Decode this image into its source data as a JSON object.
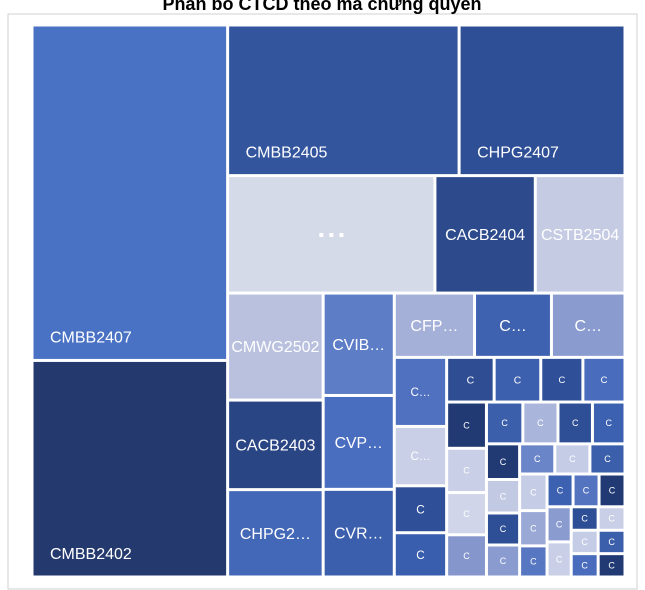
{
  "chart_data": {
    "type": "treemap",
    "title": "Phân bổ CTCD theo mã chứng quyền",
    "items": [
      {
        "name": "CMBB2407",
        "value": 62271,
        "color": "#4a72c4"
      },
      {
        "name": "CMBB2402",
        "value": 40205,
        "color": "#243a6e"
      },
      {
        "name": "CMBB2405",
        "value": 33086,
        "color": "#33559e"
      },
      {
        "name": "CHPG2407",
        "value": 23714,
        "color": "#2e4f96"
      },
      {
        "name": "▪ ▪ ▪",
        "value": 23104,
        "color": "#d5dae9"
      },
      {
        "name": "CACB2404",
        "value": 11187,
        "color": "#2c4a8c"
      },
      {
        "name": "CSTB2504",
        "value": 9999,
        "color": "#c5cbe3"
      },
      {
        "name": "CMWG2502",
        "value": 9702,
        "color": "#b9c1df"
      },
      {
        "name": "CACB2403",
        "value": 8118,
        "color": "#2a4584"
      },
      {
        "name": "CHPG2…",
        "value": 7920,
        "color": "#4468b8"
      },
      {
        "name": "CVIB…",
        "value": 6912,
        "color": "#5d7dc7"
      },
      {
        "name": "CVP…",
        "value": 6336,
        "color": "#4a6ebf"
      },
      {
        "name": "CVR…",
        "value": 5916,
        "color": "#3b5fad"
      },
      {
        "name": "CFP…",
        "value": 4896,
        "color": "#a4b0d8"
      },
      {
        "name": "C…",
        "value": 4692,
        "color": "#3f62b0"
      },
      {
        "name": "C…",
        "value": 4488,
        "color": "#8a9ccf"
      },
      {
        "name": "C…",
        "value": 3432,
        "color": "#5070c0"
      },
      {
        "name": "C…",
        "value": 2948,
        "color": "#c9cfe6"
      },
      {
        "name": "C",
        "value": 2332,
        "color": "#2f4f98"
      },
      {
        "name": "C",
        "value": 2200,
        "color": "#3a5eae"
      },
      {
        "name": "C",
        "value": 2014,
        "color": "#2e4d92"
      },
      {
        "name": "C",
        "value": 1976,
        "color": "#3c60ae"
      },
      {
        "name": "C",
        "value": 1786,
        "color": "#2f5099"
      },
      {
        "name": "C",
        "value": 1785,
        "color": "#4a6cbc"
      },
      {
        "name": "C",
        "value": 1748,
        "color": "#213a74"
      },
      {
        "name": "C",
        "value": 1672,
        "color": "#c9cfe6"
      },
      {
        "name": "C",
        "value": 1596,
        "color": "#d0d5ea"
      },
      {
        "name": "C",
        "value": 1595,
        "color": "#8596cc"
      },
      {
        "name": "C",
        "value": 1444,
        "color": "#3c5fac"
      },
      {
        "name": "C",
        "value": 1394,
        "color": "#a9b5db"
      },
      {
        "name": "C",
        "value": 1368,
        "color": "#2e4f96"
      },
      {
        "name": "C",
        "value": 1292,
        "color": "#3d61b1"
      },
      {
        "name": "C",
        "value": 1122,
        "color": "#213a74"
      },
      {
        "name": "C",
        "value": 1054,
        "color": "#c2c9e3"
      },
      {
        "name": "C",
        "value": 1008,
        "color": "#2e4f96"
      },
      {
        "name": "C",
        "value": 1007,
        "color": "#8a9bcf"
      },
      {
        "name": "C",
        "value": 1006,
        "color": "#6b86c8"
      },
      {
        "name": "C",
        "value": 1005,
        "color": "#c5cce6"
      },
      {
        "name": "C",
        "value": 1004,
        "color": "#3c5fac"
      },
      {
        "name": "C",
        "value": 952,
        "color": "#c5cce6"
      },
      {
        "name": "C",
        "value": 918,
        "color": "#9aa8d6"
      },
      {
        "name": "C",
        "value": 810,
        "color": "#5877c2"
      },
      {
        "name": "C",
        "value": 809,
        "color": "#3d61b1"
      },
      {
        "name": "C",
        "value": 808,
        "color": "#5574c0"
      },
      {
        "name": "C",
        "value": 807,
        "color": "#213a74"
      },
      {
        "name": "C",
        "value": 806,
        "color": "#8a9bcf"
      },
      {
        "name": "C",
        "value": 805,
        "color": "#c9cfe6"
      },
      {
        "name": "C",
        "value": 600,
        "color": "#2e4f96"
      },
      {
        "name": "C",
        "value": 599,
        "color": "#c9cfe6"
      },
      {
        "name": "C",
        "value": 598,
        "color": "#c5cce6"
      },
      {
        "name": "C",
        "value": 597,
        "color": "#4a6cbc"
      },
      {
        "name": "C",
        "value": 596,
        "color": "#3c5fac"
      },
      {
        "name": "C",
        "value": 595,
        "color": "#213a74"
      }
    ]
  }
}
